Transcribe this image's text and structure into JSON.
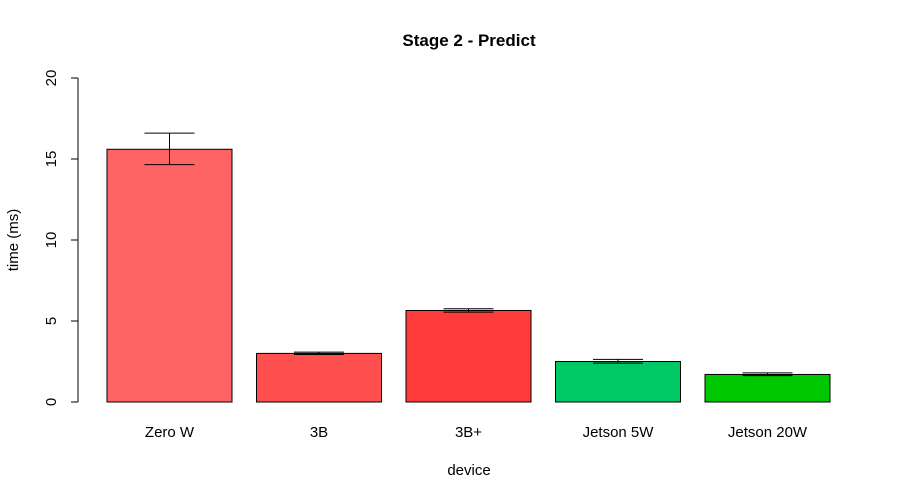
{
  "chart_data": {
    "type": "bar",
    "title": "Stage 2 - Predict",
    "xlabel": "device",
    "ylabel": "time (ms)",
    "ylim": [
      0,
      20
    ],
    "yticks": [
      0,
      5,
      10,
      15,
      20
    ],
    "grid": false,
    "categories": [
      "Zero W",
      "3B",
      "3B+",
      "Jetson 5W",
      "Jetson 20W"
    ],
    "values": [
      15.6,
      3.0,
      5.65,
      2.5,
      1.7
    ],
    "error_low": [
      14.65,
      2.93,
      5.55,
      2.4,
      1.63
    ],
    "error_high": [
      16.6,
      3.08,
      5.76,
      2.63,
      1.8
    ],
    "colors": [
      "#ff6464",
      "#ff5050",
      "#ff3c3c",
      "#00c864",
      "#00c800"
    ]
  }
}
